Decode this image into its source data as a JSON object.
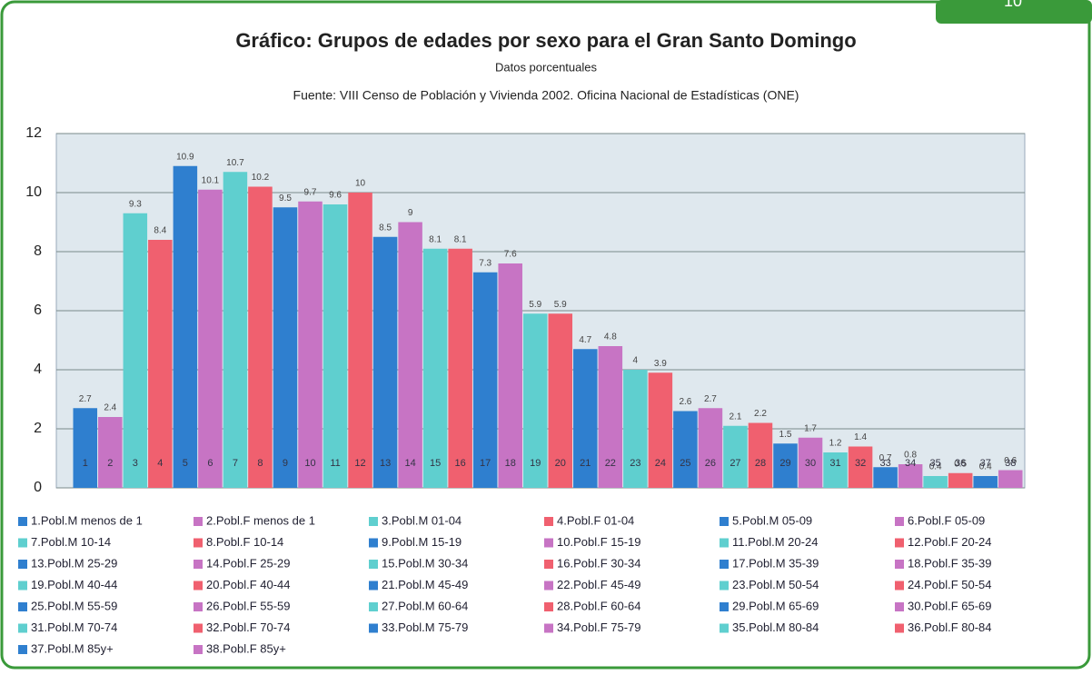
{
  "page_tab": "10",
  "chart_data": {
    "type": "bar",
    "title": "Gráfico: Grupos de edades por sexo para el Gran Santo Domingo",
    "subtitle": "Datos porcentuales",
    "source": "Fuente: VIII Censo de Población y Vivienda 2002. Oficina Nacional de Estadísticas (ONE)",
    "categories": [
      "1",
      "2",
      "3",
      "4",
      "5",
      "6",
      "7",
      "8",
      "9",
      "10",
      "11",
      "12",
      "13",
      "14",
      "15",
      "16",
      "17",
      "18",
      "19",
      "20",
      "21",
      "22",
      "23",
      "24",
      "25",
      "26",
      "27",
      "28",
      "29",
      "30",
      "31",
      "32",
      "33",
      "34",
      "35",
      "36",
      "37",
      "38"
    ],
    "values": [
      2.7,
      2.4,
      9.3,
      8.4,
      10.9,
      10.1,
      10.7,
      10.2,
      9.5,
      9.7,
      9.6,
      10,
      8.5,
      9,
      8.1,
      8.1,
      7.3,
      7.6,
      5.9,
      5.9,
      4.7,
      4.8,
      4,
      3.9,
      2.6,
      2.7,
      2.1,
      2.2,
      1.5,
      1.7,
      1.2,
      1.4,
      0.7,
      0.8,
      0.4,
      0.5,
      0.4,
      0.6
    ],
    "colors": [
      "#2f7fcf",
      "#c774c4",
      "#5fcfcf",
      "#f0606f"
    ],
    "legend": [
      "1.Pobl.M menos de 1",
      "2.Pobl.F menos de 1",
      "3.Pobl.M 01-04",
      "4.Pobl.F 01-04",
      "5.Pobl.M 05-09",
      "6.Pobl.F 05-09",
      "7.Pobl.M 10-14",
      "8.Pobl.F 10-14",
      "9.Pobl.M 15-19",
      "10.Pobl.F 15-19",
      "11.Pobl.M 20-24",
      "12.Pobl.F 20-24",
      "13.Pobl.M 25-29",
      "14.Pobl.F 25-29",
      "15.Pobl.M 30-34",
      "16.Pobl.F 30-34",
      "17.Pobl.M 35-39",
      "18.Pobl.F 35-39",
      "19.Pobl.M 40-44",
      "20.Pobl.F 40-44",
      "21.Pobl.M 45-49",
      "22.Pobl.F 45-49",
      "23.Pobl.M 50-54",
      "24.Pobl.F 50-54",
      "25.Pobl.M 55-59",
      "26.Pobl.F 55-59",
      "27.Pobl.M 60-64",
      "28.Pobl.F 60-64",
      "29.Pobl.M 65-69",
      "30.Pobl.F 65-69",
      "31.Pobl.M 70-74",
      "32.Pobl.F 70-74",
      "33.Pobl.M 75-79",
      "34.Pobl.F 75-79",
      "35.Pobl.M 80-84",
      "36.Pobl.F 80-84",
      "37.Pobl.M 85y+",
      "38.Pobl.F 85y+"
    ],
    "ylim": [
      0,
      12
    ],
    "yticks": [
      0,
      2,
      4,
      6,
      8,
      10,
      12
    ],
    "grid": true
  }
}
